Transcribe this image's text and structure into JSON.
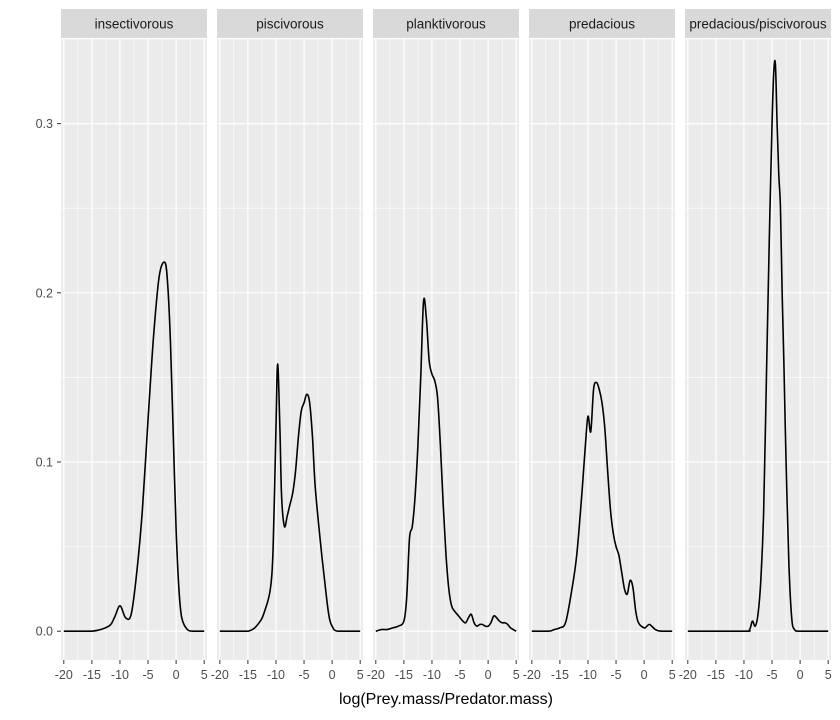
{
  "chart_data": {
    "type": "line",
    "chart_kind": "faceted density plot",
    "title": "",
    "xlabel": "log(Prey.mass/Predator.mass)",
    "ylabel": "",
    "xlim": [
      -20.5,
      5.5
    ],
    "ylim": [
      -0.017,
      0.35
    ],
    "x_ticks": [
      -20,
      -15,
      -10,
      -5,
      0,
      5
    ],
    "x_tick_labels": [
      "-20",
      "-15",
      "-10",
      "-5",
      "0",
      "5"
    ],
    "y_ticks": [
      0.0,
      0.1,
      0.2,
      0.3
    ],
    "y_tick_labels": [
      "0.0",
      "0.1",
      "0.2",
      "0.3"
    ],
    "grid": true,
    "legend": "none",
    "colors": {
      "panel_bg": "#ebebeb",
      "strip_bg": "#d9d9d9",
      "grid": "#ffffff",
      "line": "#000000",
      "tick": "#333333"
    },
    "facets": [
      {
        "name": "insectivorous",
        "x": [
          -20,
          -15,
          -12,
          -11,
          -10,
          -9,
          -8,
          -7,
          -6,
          -5,
          -4,
          -3,
          -2,
          -1.5,
          -1,
          -0.5,
          0,
          0.5,
          1,
          2,
          3,
          5
        ],
        "y": [
          0.0,
          0.0,
          0.003,
          0.008,
          0.015,
          0.008,
          0.01,
          0.035,
          0.072,
          0.125,
          0.175,
          0.21,
          0.218,
          0.205,
          0.17,
          0.115,
          0.06,
          0.025,
          0.008,
          0.001,
          0.0,
          0.0
        ]
      },
      {
        "name": "piscivorous",
        "x": [
          -20,
          -15,
          -13,
          -12,
          -11,
          -10.5,
          -10,
          -9.7,
          -9.3,
          -9,
          -8.5,
          -8,
          -7.5,
          -7,
          -6.5,
          -6,
          -5.5,
          -5,
          -4.5,
          -4,
          -3.5,
          -3,
          -2,
          -1,
          -0.5,
          0,
          1,
          5
        ],
        "y": [
          0.0,
          0.0,
          0.005,
          0.012,
          0.025,
          0.05,
          0.12,
          0.158,
          0.12,
          0.08,
          0.062,
          0.068,
          0.075,
          0.082,
          0.095,
          0.115,
          0.13,
          0.135,
          0.14,
          0.135,
          0.115,
          0.085,
          0.05,
          0.02,
          0.008,
          0.003,
          0.0,
          0.0
        ]
      },
      {
        "name": "planktivorous",
        "x": [
          -20,
          -19,
          -18,
          -17,
          -16,
          -15,
          -14.5,
          -14,
          -13.5,
          -13,
          -12.5,
          -12,
          -11.5,
          -11,
          -10.5,
          -10,
          -9.5,
          -9,
          -8.5,
          -8,
          -7.5,
          -7,
          -6.5,
          -6,
          -5.5,
          -5,
          -4.5,
          -4,
          -3.5,
          -3,
          -2.5,
          -2,
          -1.5,
          -1,
          -0.5,
          0,
          0.5,
          1,
          1.5,
          2,
          2.5,
          3,
          3.5,
          4,
          5
        ],
        "y": [
          0.0,
          0.001,
          0.001,
          0.002,
          0.003,
          0.006,
          0.02,
          0.055,
          0.062,
          0.08,
          0.11,
          0.15,
          0.195,
          0.185,
          0.16,
          0.152,
          0.148,
          0.138,
          0.11,
          0.075,
          0.045,
          0.025,
          0.015,
          0.012,
          0.01,
          0.008,
          0.006,
          0.005,
          0.008,
          0.01,
          0.005,
          0.003,
          0.004,
          0.004,
          0.003,
          0.003,
          0.005,
          0.009,
          0.008,
          0.006,
          0.005,
          0.005,
          0.004,
          0.002,
          0.0
        ]
      },
      {
        "name": "predacious",
        "x": [
          -20,
          -17,
          -16,
          -15,
          -14,
          -13,
          -12,
          -11,
          -10.5,
          -10,
          -9.5,
          -9,
          -8.5,
          -8,
          -7.5,
          -7,
          -6.5,
          -6,
          -5.5,
          -5,
          -4.5,
          -4,
          -3.5,
          -3,
          -2.5,
          -2,
          -1.5,
          -1,
          0,
          0.5,
          1,
          2,
          3,
          5
        ],
        "y": [
          0.0,
          0.0,
          0.001,
          0.002,
          0.005,
          0.022,
          0.045,
          0.085,
          0.108,
          0.127,
          0.118,
          0.143,
          0.147,
          0.143,
          0.135,
          0.12,
          0.095,
          0.072,
          0.058,
          0.05,
          0.045,
          0.035,
          0.025,
          0.022,
          0.03,
          0.026,
          0.012,
          0.005,
          0.002,
          0.003,
          0.004,
          0.001,
          0.0,
          0.0
        ]
      },
      {
        "name": "predacious/piscivorous",
        "x": [
          -20,
          -10,
          -9,
          -8.5,
          -8,
          -7.5,
          -7,
          -6.5,
          -6,
          -5.5,
          -5,
          -4.7,
          -4.4,
          -4.1,
          -3.8,
          -3.5,
          -3.2,
          -2.9,
          -2.5,
          -2,
          -1.5,
          -1,
          0,
          5
        ],
        "y": [
          0.0,
          0.0,
          0.001,
          0.006,
          0.003,
          0.01,
          0.03,
          0.07,
          0.15,
          0.23,
          0.3,
          0.33,
          0.335,
          0.3,
          0.27,
          0.25,
          0.2,
          0.16,
          0.1,
          0.04,
          0.008,
          0.001,
          0.0,
          0.0
        ]
      }
    ]
  }
}
